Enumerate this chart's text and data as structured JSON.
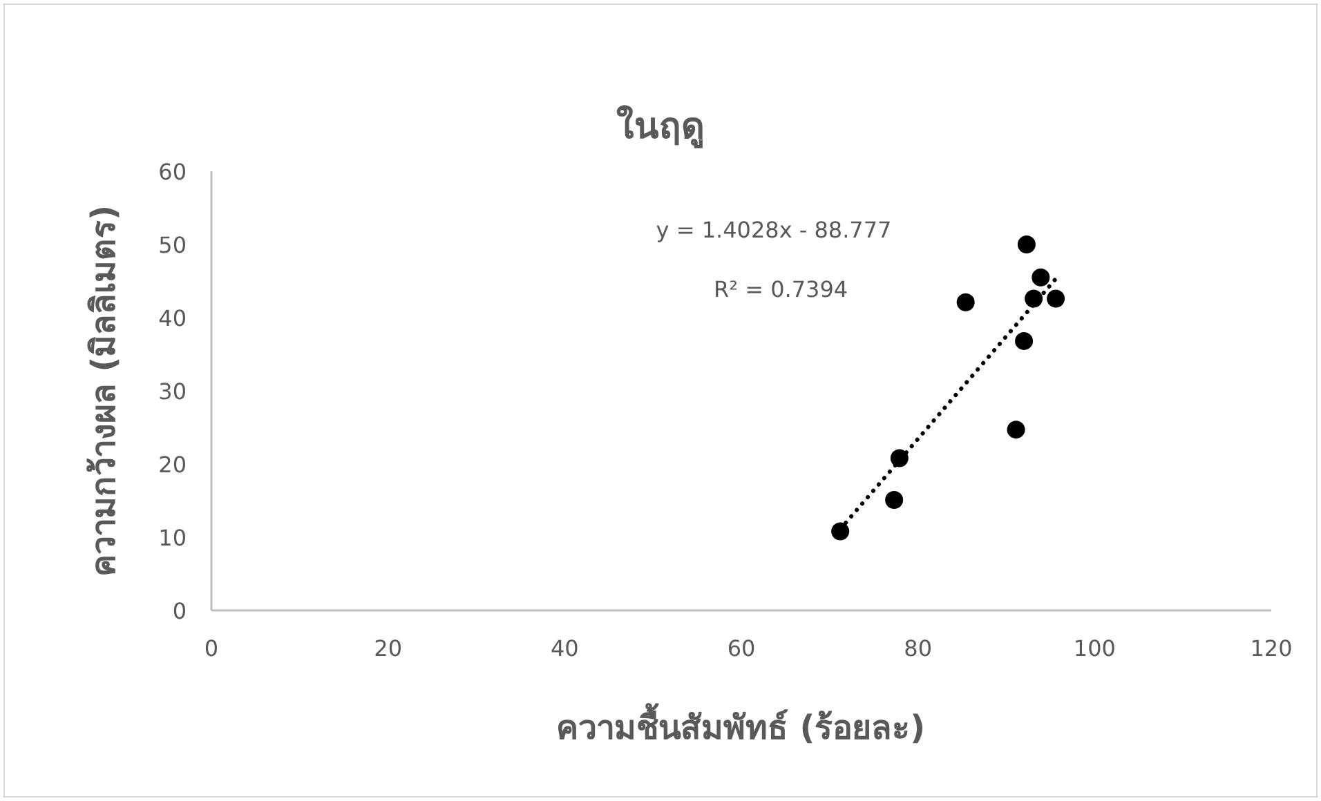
{
  "chart_data": {
    "type": "scatter",
    "title": "ในฤดู",
    "xlabel": "ความชื้นสัมพัทธ์ (ร้อยละ)",
    "ylabel": "ความกว้างผล (มิลลิเมตร)",
    "annotations": [
      "y = 1.4028x - 88.777",
      "R² = 0.7394"
    ],
    "xlim": [
      0,
      120
    ],
    "xticks": [
      0,
      20,
      40,
      60,
      80,
      100,
      120
    ],
    "ylim": [
      0,
      60
    ],
    "yticks": [
      0,
      10,
      20,
      30,
      40,
      50,
      60
    ],
    "grid": false,
    "series": [
      {
        "type": "scatter",
        "color": "#000000",
        "marker": "circle",
        "x": [
          71.2,
          77.3,
          77.9,
          85.4,
          91.1,
          92.0,
          92.3,
          93.1,
          93.9,
          95.6
        ],
        "values": [
          10.8,
          15.1,
          20.8,
          42.1,
          24.7,
          36.8,
          50.0,
          42.6,
          45.5,
          42.6
        ]
      },
      {
        "type": "line",
        "color": "#000000",
        "line_style": "dotted",
        "x": [
          71.2,
          95.6
        ],
        "values": [
          11.1,
          45.3
        ]
      }
    ]
  }
}
